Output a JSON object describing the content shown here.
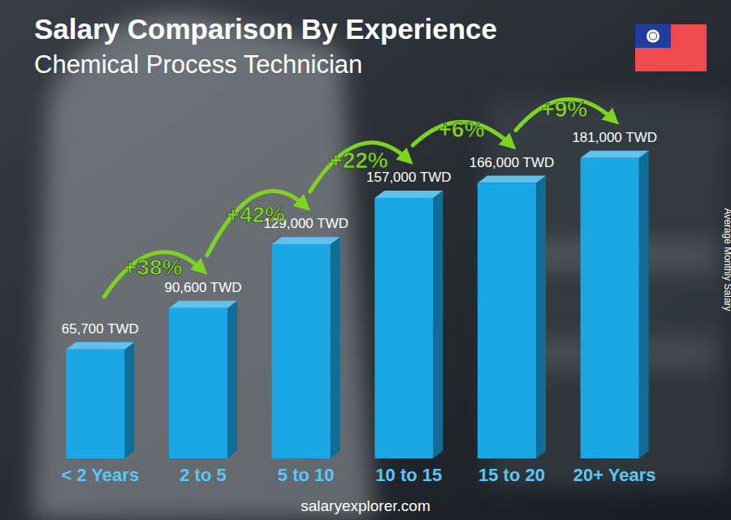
{
  "chart_data": {
    "type": "bar",
    "title": "Salary Comparison By Experience",
    "subtitle": "Chemical Process Technician",
    "y_label": "Average Monthly Salary",
    "source": "salaryexplorer.com",
    "categories": [
      "< 2 Years",
      "2 to 5",
      "5 to 10",
      "10 to 15",
      "15 to 20",
      "20+ Years"
    ],
    "values": [
      65700,
      90600,
      129000,
      157000,
      166000,
      181000
    ],
    "value_labels": [
      "65,700 TWD",
      "90,600 TWD",
      "129,000 TWD",
      "157,000 TWD",
      "166,000 TWD",
      "181,000 TWD"
    ],
    "annotations": [
      "+38%",
      "+42%",
      "+22%",
      "+6%",
      "+9%"
    ],
    "color": "#1aa7e6",
    "ylim": [
      0,
      200000
    ],
    "data_labels": true,
    "tick_labels": "x",
    "grid": false
  }
}
